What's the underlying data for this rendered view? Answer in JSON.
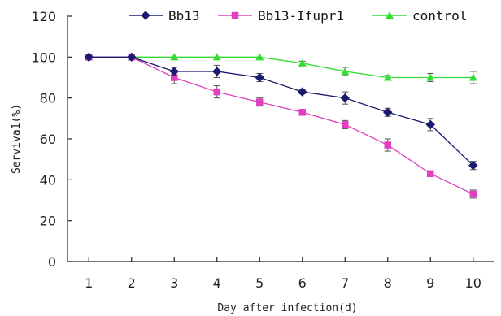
{
  "chart_data": {
    "type": "line",
    "title": "",
    "xlabel": "Day after infection(d)",
    "ylabel": "Serviva1(%)",
    "x": [
      1,
      2,
      3,
      4,
      5,
      6,
      7,
      8,
      9,
      10
    ],
    "x_tick_labels": [
      "1",
      "2",
      "3",
      "4",
      "5",
      "6",
      "7",
      "8",
      "9",
      "10"
    ],
    "xlim": [
      0.5,
      10.5
    ],
    "ylim": [
      0,
      120
    ],
    "y_ticks": [
      0,
      20,
      40,
      60,
      80,
      100,
      120
    ],
    "y_tick_labels": [
      "0",
      "20",
      "40",
      "60",
      "80",
      "100",
      "120"
    ],
    "grid": false,
    "legend_position": "top",
    "series": [
      {
        "name": "Bb13",
        "color": "#1a1a6e",
        "marker": "diamond",
        "values": [
          100,
          100,
          93,
          93,
          90,
          83,
          80,
          73,
          67,
          47
        ],
        "errors": [
          0,
          0,
          2,
          3,
          2,
          1,
          3,
          2,
          3,
          2
        ]
      },
      {
        "name": "Bb13-Ifupr1",
        "color": "#e040c0",
        "marker": "square",
        "values": [
          100,
          100,
          90,
          83,
          78,
          73,
          67,
          57,
          43,
          33
        ],
        "errors": [
          0,
          0,
          3,
          3,
          2,
          1,
          2,
          3,
          1,
          2
        ]
      },
      {
        "name": "control",
        "color": "#33dd33",
        "marker": "triangle",
        "values": [
          100,
          100,
          100,
          100,
          100,
          97,
          93,
          90,
          90,
          90
        ],
        "errors": [
          0,
          0,
          0,
          0,
          0,
          1,
          2,
          1,
          2,
          3
        ]
      }
    ]
  }
}
